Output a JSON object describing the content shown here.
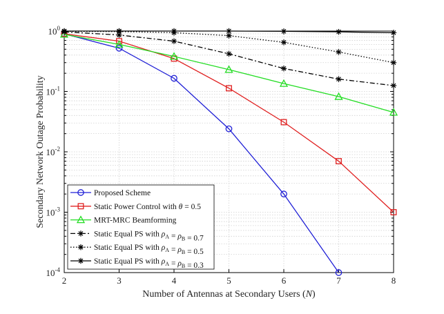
{
  "chart_data": {
    "type": "line",
    "yscale": "log",
    "xlabel": "Number of Antennas at Secondary Users (N)",
    "ylabel": "Secondary Network Outage Probability",
    "xlim": [
      2,
      8
    ],
    "ylim": [
      0.0001,
      1
    ],
    "xticks": [
      "2",
      "3",
      "4",
      "5",
      "6",
      "7",
      "8"
    ],
    "yticks": [
      {
        "base": "10",
        "exp": "-4",
        "value": 0.0001
      },
      {
        "base": "10",
        "exp": "-3",
        "value": 0.001
      },
      {
        "base": "10",
        "exp": "-2",
        "value": 0.01
      },
      {
        "base": "10",
        "exp": "-1",
        "value": 0.1
      },
      {
        "base": "10",
        "exp": "0",
        "value": 1
      }
    ],
    "grid": true,
    "legend_position": "bottom-left",
    "series": [
      {
        "name": "Proposed Scheme",
        "color": "#1f1fd6",
        "marker": "circle",
        "dash": "solid",
        "x": [
          2,
          3,
          4,
          5,
          6,
          7
        ],
        "values": [
          0.9,
          0.52,
          0.165,
          0.024,
          0.002,
          0.0001
        ]
      },
      {
        "name": "Static Power Control with θ = 0.5",
        "color": "#e02020",
        "marker": "square",
        "dash": "solid",
        "x": [
          2,
          3,
          4,
          5,
          6,
          7,
          8
        ],
        "values": [
          0.9,
          0.68,
          0.35,
          0.113,
          0.031,
          0.007,
          0.001
        ]
      },
      {
        "name": "MRT-MRC Beamforming",
        "color": "#22dd22",
        "marker": "triangle",
        "dash": "solid",
        "x": [
          2,
          3,
          4,
          5,
          6,
          7,
          8
        ],
        "values": [
          0.88,
          0.6,
          0.38,
          0.23,
          0.135,
          0.082,
          0.045
        ]
      },
      {
        "name": "Static Equal PS with ρA = ρB = 0.7",
        "color": "#000000",
        "marker": "star",
        "dash": "dashdot",
        "x": [
          2,
          3,
          4,
          5,
          6,
          7,
          8
        ],
        "values": [
          0.97,
          0.86,
          0.68,
          0.42,
          0.24,
          0.16,
          0.125
        ]
      },
      {
        "name": "Static Equal PS with ρA = ρB = 0.5",
        "color": "#000000",
        "marker": "star",
        "dash": "dotted",
        "x": [
          2,
          3,
          4,
          5,
          6,
          7,
          8
        ],
        "values": [
          0.99,
          0.98,
          0.94,
          0.84,
          0.65,
          0.45,
          0.3
        ]
      },
      {
        "name": "Static Equal PS with ρA = ρB = 0.3",
        "color": "#000000",
        "marker": "star",
        "dash": "solid",
        "x": [
          2,
          3,
          4,
          5,
          6,
          7,
          8
        ],
        "values": [
          1.0,
          1.0,
          1.0,
          1.0,
          0.99,
          0.97,
          0.94
        ]
      }
    ]
  },
  "legend": [
    {
      "parts": [
        {
          "t": "Proposed Scheme"
        }
      ]
    },
    {
      "parts": [
        {
          "t": "Static Power Control with "
        },
        {
          "t": "θ",
          "i": true
        },
        {
          "t": " = 0.5"
        }
      ]
    },
    {
      "parts": [
        {
          "t": "MRT-MRC Beamforming"
        }
      ]
    },
    {
      "parts": [
        {
          "t": "Static Equal PS with "
        },
        {
          "t": "ρ",
          "i": true
        },
        {
          "t": "A",
          "sub": true
        },
        {
          "t": " = "
        },
        {
          "t": "ρ",
          "i": true
        },
        {
          "t": "B",
          "sub": true
        },
        {
          "t": " = 0.7"
        }
      ]
    },
    {
      "parts": [
        {
          "t": "Static Equal PS with "
        },
        {
          "t": "ρ",
          "i": true
        },
        {
          "t": "A",
          "sub": true
        },
        {
          "t": " = "
        },
        {
          "t": "ρ",
          "i": true
        },
        {
          "t": "B",
          "sub": true
        },
        {
          "t": " = 0.5"
        }
      ]
    },
    {
      "parts": [
        {
          "t": "Static Equal PS with "
        },
        {
          "t": "ρ",
          "i": true
        },
        {
          "t": "A",
          "sub": true
        },
        {
          "t": " = "
        },
        {
          "t": "ρ",
          "i": true
        },
        {
          "t": "B",
          "sub": true
        },
        {
          "t": " = 0.3"
        }
      ]
    }
  ]
}
